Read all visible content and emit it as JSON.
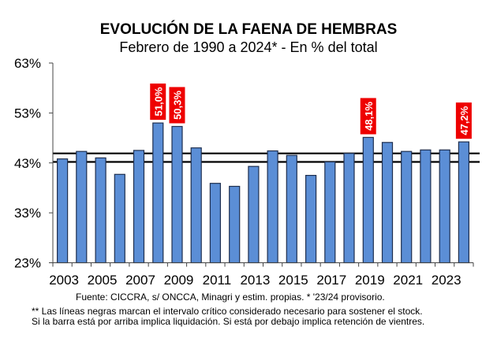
{
  "chart_data": {
    "type": "bar",
    "title": "EVOLUCIÓN DE LA FAENA DE HEMBRAS",
    "subtitle": "Febrero de 1990 a 2024* - En % del total",
    "xlabel": "",
    "ylabel": "",
    "ylim": [
      23,
      63
    ],
    "yticks": [
      23,
      33,
      43,
      53,
      63
    ],
    "ytick_labels": [
      "23%",
      "33%",
      "43%",
      "53%",
      "63%"
    ],
    "categories": [
      "2003",
      "2004",
      "2005",
      "2006",
      "2007",
      "2008",
      "2009",
      "2010",
      "2011",
      "2012",
      "2013",
      "2014",
      "2015",
      "2016",
      "2017",
      "2018",
      "2019",
      "2020",
      "2021",
      "2022",
      "2023",
      "2024"
    ],
    "xtick_labels": [
      "2003",
      "",
      "2005",
      "",
      "2007",
      "",
      "2009",
      "",
      "2011",
      "",
      "2013",
      "",
      "2015",
      "",
      "2017",
      "",
      "2019",
      "",
      "2021",
      "",
      "2023",
      ""
    ],
    "values": [
      43.8,
      45.3,
      44.0,
      40.7,
      45.5,
      51.0,
      50.3,
      46.0,
      38.9,
      38.3,
      42.3,
      45.4,
      44.5,
      40.5,
      43.2,
      44.9,
      48.1,
      47.1,
      45.3,
      45.6,
      45.6,
      47.2
    ],
    "data_labels": [
      {
        "category": "2008",
        "text": "51,0%"
      },
      {
        "category": "2009",
        "text": "50,3%"
      },
      {
        "category": "2019",
        "text": "48,1%"
      },
      {
        "category": "2024",
        "text": "47,2%"
      }
    ],
    "reference_lines": [
      43.2,
      44.9
    ],
    "grid": false,
    "legend": "none",
    "colors": {
      "bar_fill": "#5B8ED6",
      "bar_stroke": "#1F2F4F",
      "label_bg": "#EE0000",
      "label_text": "#FFFFFF",
      "reference_line": "#000000"
    }
  },
  "footer": {
    "source": "Fuente: CICCRA, s/ ONCCA, Minagri y estim. propias. * '23/24  provisorio.",
    "note_line1": "** Las líneas negras marcan el intervalo crítico considerado necesario para sostener el stock.",
    "note_line2": "Si la barra está por arriba implica liquidación. Si está por debajo implica retención de vientres."
  }
}
